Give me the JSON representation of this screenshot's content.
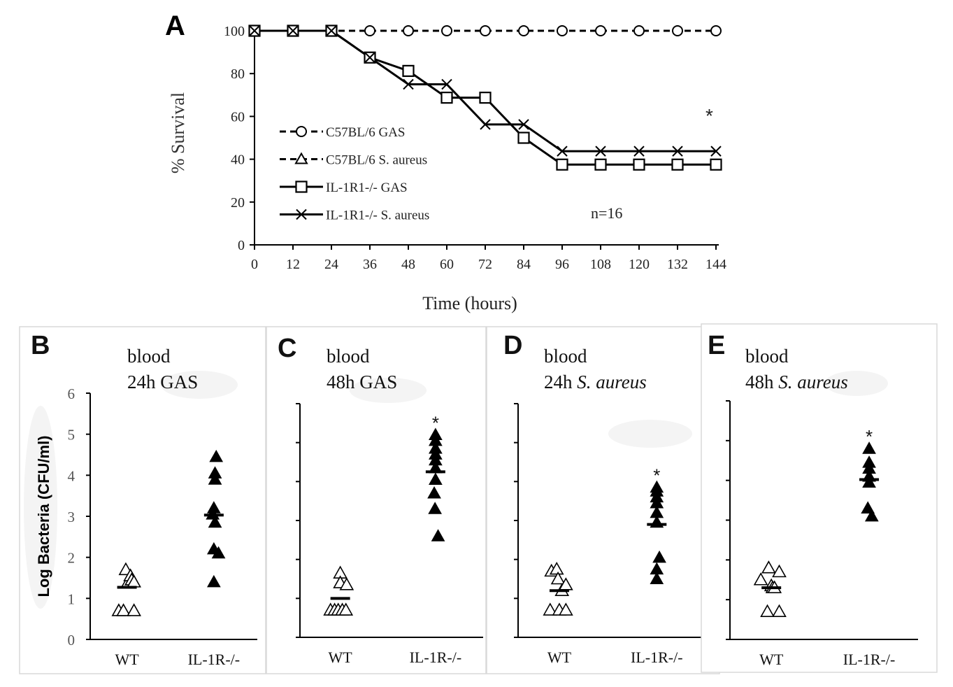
{
  "chart_data": [
    {
      "panel": "A",
      "type": "line",
      "xlabel": "Time (hours)",
      "ylabel": "% Survival",
      "xlim": [
        0,
        144
      ],
      "ylim": [
        0,
        100
      ],
      "x_ticks": [
        0,
        12,
        24,
        36,
        48,
        60,
        72,
        84,
        96,
        108,
        120,
        132,
        144
      ],
      "y_ticks": [
        0,
        20,
        40,
        60,
        80,
        100
      ],
      "annotation_n": "n=16",
      "significance": "*",
      "legend_position": "center-left",
      "series": [
        {
          "name": "C57BL/6 GAS",
          "marker": "circle",
          "dash": true,
          "x": [
            0,
            12,
            24,
            36,
            48,
            60,
            72,
            84,
            96,
            108,
            120,
            132,
            144
          ],
          "values": [
            100,
            100,
            100,
            100,
            100,
            100,
            100,
            100,
            100,
            100,
            100,
            100,
            100
          ]
        },
        {
          "name": "C57BL/6 S. aureus",
          "marker": "triangle",
          "dash": true,
          "x": [
            0,
            12,
            24,
            36,
            48,
            60,
            72,
            84,
            96,
            108,
            120,
            132,
            144
          ],
          "values": [
            100,
            100,
            100,
            100,
            100,
            100,
            100,
            100,
            100,
            100,
            100,
            100,
            100
          ]
        },
        {
          "name": "IL-1R1-/- GAS",
          "marker": "square",
          "dash": false,
          "x": [
            0,
            12,
            24,
            36,
            48,
            60,
            72,
            84,
            96,
            108,
            120,
            132,
            144
          ],
          "values": [
            100,
            100,
            100,
            87.5,
            81.25,
            68.75,
            68.75,
            50,
            37.5,
            37.5,
            37.5,
            37.5,
            37.5
          ]
        },
        {
          "name": "IL-1R1-/- S. aureus",
          "marker": "x",
          "dash": false,
          "x": [
            0,
            12,
            24,
            36,
            48,
            60,
            72,
            84,
            96,
            108,
            120,
            132,
            144
          ],
          "values": [
            100,
            100,
            100,
            87.5,
            75,
            75,
            56.25,
            56.25,
            43.75,
            43.75,
            43.75,
            43.75,
            43.75
          ]
        }
      ]
    },
    {
      "panel": "B",
      "type": "scatter",
      "title_line1": "blood",
      "title_line2_prefix": "24h ",
      "title_line2_italic": "GAS",
      "italic": false,
      "ylabel": "Log Bacteria (CFU/ml)",
      "ylim": [
        0,
        6
      ],
      "y_ticks": [
        0,
        1,
        2,
        3,
        4,
        5,
        6
      ],
      "show_tick_labels": true,
      "categories": [
        "WT",
        "IL-1R-/-"
      ],
      "groups": [
        {
          "name": "WT",
          "filled": false,
          "points": [
            [
              -0.35,
              0.7
            ],
            [
              -0.15,
              0.7
            ],
            [
              -0.05,
              1.7
            ],
            [
              0.05,
              1.4
            ],
            [
              0.15,
              1.55
            ],
            [
              0.2,
              1.45
            ],
            [
              0.3,
              1.4
            ],
            [
              0.3,
              0.7
            ]
          ],
          "mean": 1.27
        },
        {
          "name": "IL-1R-/-",
          "filled": true,
          "points": [
            [
              0.1,
              4.45
            ],
            [
              0.05,
              4.05
            ],
            [
              0.05,
              3.9
            ],
            [
              0.0,
              3.2
            ],
            [
              -0.05,
              3.05
            ],
            [
              0.05,
              2.85
            ],
            [
              0.0,
              2.2
            ],
            [
              0.2,
              2.1
            ],
            [
              0.0,
              1.4
            ]
          ],
          "mean": 3.03
        }
      ],
      "significance": ""
    },
    {
      "panel": "C",
      "type": "scatter",
      "title_line1": "blood",
      "title_line2_prefix": "48h ",
      "title_line2_italic": "GAS",
      "italic": false,
      "ylim": [
        0,
        6
      ],
      "y_ticks": [
        0,
        1,
        2,
        3,
        4,
        5,
        6
      ],
      "show_tick_labels": false,
      "categories": [
        "WT",
        "IL-1R-/-"
      ],
      "groups": [
        {
          "name": "WT",
          "filled": false,
          "points": [
            [
              -0.38,
              0.7
            ],
            [
              -0.22,
              0.7
            ],
            [
              -0.08,
              0.7
            ],
            [
              0.08,
              0.7
            ],
            [
              0.22,
              0.7
            ],
            [
              0.0,
              1.65
            ],
            [
              0.0,
              1.4
            ],
            [
              0.25,
              1.35
            ]
          ],
          "mean": 1.0
        },
        {
          "name": "IL-1R-/-",
          "filled": true,
          "points": [
            [
              0.0,
              5.2
            ],
            [
              0.0,
              5.05
            ],
            [
              0.0,
              4.85
            ],
            [
              0.0,
              4.7
            ],
            [
              0.0,
              4.55
            ],
            [
              0.0,
              4.35
            ],
            [
              0.0,
              4.05
            ],
            [
              -0.05,
              3.7
            ],
            [
              -0.02,
              3.3
            ],
            [
              0.1,
              2.6
            ]
          ],
          "mean": 4.25
        }
      ],
      "significance": "*"
    },
    {
      "panel": "D",
      "type": "scatter",
      "title_line1": "blood",
      "title_line2_prefix": "24h ",
      "title_line2_italic": "S. aureus",
      "italic": true,
      "ylim": [
        0,
        6
      ],
      "y_ticks": [
        0,
        1,
        2,
        3,
        4,
        5,
        6
      ],
      "show_tick_labels": false,
      "categories": [
        "WT",
        "IL-1R-/-"
      ],
      "groups": [
        {
          "name": "WT",
          "filled": false,
          "points": [
            [
              -0.3,
              1.7
            ],
            [
              -0.1,
              1.75
            ],
            [
              -0.05,
              1.5
            ],
            [
              0.1,
              1.2
            ],
            [
              0.25,
              1.35
            ],
            [
              -0.35,
              0.7
            ],
            [
              0.0,
              0.7
            ],
            [
              0.25,
              0.7
            ]
          ],
          "mean": 1.2
        },
        {
          "name": "IL-1R-/-",
          "filled": true,
          "points": [
            [
              0.0,
              3.85
            ],
            [
              0.0,
              3.75
            ],
            [
              0.0,
              3.6
            ],
            [
              0.0,
              3.45
            ],
            [
              0.0,
              3.2
            ],
            [
              0.0,
              2.95
            ],
            [
              0.1,
              2.05
            ],
            [
              0.0,
              1.75
            ],
            [
              0.0,
              1.5
            ]
          ],
          "mean": 2.9
        }
      ],
      "significance": "*"
    },
    {
      "panel": "E",
      "type": "scatter",
      "title_line1": "blood",
      "title_line2_prefix": "48h ",
      "title_line2_italic": "S. aureus",
      "italic": true,
      "ylim": [
        0,
        6
      ],
      "y_ticks": [
        0,
        1,
        2,
        3,
        4,
        5,
        6
      ],
      "show_tick_labels": false,
      "categories": [
        "WT",
        "IL-1R-/-"
      ],
      "groups": [
        {
          "name": "WT",
          "filled": false,
          "points": [
            [
              -0.4,
              1.5
            ],
            [
              -0.1,
              1.8
            ],
            [
              0.0,
              1.35
            ],
            [
              0.05,
              1.3
            ],
            [
              0.12,
              1.3
            ],
            [
              0.3,
              1.7
            ],
            [
              -0.15,
              0.7
            ],
            [
              0.3,
              0.7
            ]
          ],
          "mean": 1.3
        },
        {
          "name": "IL-1R-/-",
          "filled": true,
          "points": [
            [
              0.0,
              4.8
            ],
            [
              0.0,
              4.45
            ],
            [
              0.0,
              4.3
            ],
            [
              0.0,
              4.1
            ],
            [
              0.0,
              3.95
            ],
            [
              -0.05,
              3.3
            ],
            [
              0.1,
              3.1
            ]
          ],
          "mean": 4.02
        }
      ],
      "significance": "*"
    }
  ]
}
